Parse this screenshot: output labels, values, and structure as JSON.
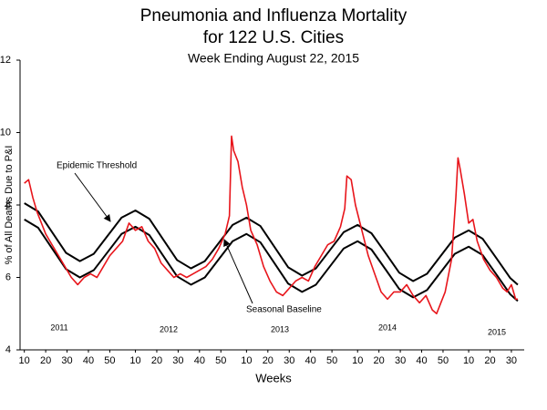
{
  "chart_data": {
    "type": "line",
    "title": [
      "Pneumonia and Influenza Mortality",
      "for 122 U.S. Cities"
    ],
    "subtitle": "Week Ending August 22, 2015",
    "xlabel": "Weeks",
    "ylabel": "% of All Deaths Due to P&I",
    "year_labels": [
      "2011",
      "2012",
      "2013",
      "2014",
      "2015"
    ],
    "xlim": [
      -2,
      234
    ],
    "ylim": [
      4,
      12
    ],
    "yticks": [
      4,
      6,
      8,
      10,
      12
    ],
    "xticks": [
      {
        "value": 0,
        "label": "10"
      },
      {
        "value": 10,
        "label": "20"
      },
      {
        "value": 20,
        "label": "30"
      },
      {
        "value": 30,
        "label": "40"
      },
      {
        "value": 40,
        "label": "50"
      },
      {
        "value": 52,
        "label": "10"
      },
      {
        "value": 62,
        "label": "20"
      },
      {
        "value": 72,
        "label": "30"
      },
      {
        "value": 82,
        "label": "40"
      },
      {
        "value": 92,
        "label": "50"
      },
      {
        "value": 104,
        "label": "10"
      },
      {
        "value": 114,
        "label": "20"
      },
      {
        "value": 124,
        "label": "30"
      },
      {
        "value": 134,
        "label": "40"
      },
      {
        "value": 144,
        "label": "50"
      },
      {
        "value": 156,
        "label": "10"
      },
      {
        "value": 166,
        "label": "20"
      },
      {
        "value": 176,
        "label": "30"
      },
      {
        "value": 186,
        "label": "40"
      },
      {
        "value": 196,
        "label": "50"
      },
      {
        "value": 208,
        "label": "10"
      },
      {
        "value": 218,
        "label": "20"
      },
      {
        "value": 228,
        "label": "30"
      }
    ],
    "grid": false,
    "series": [
      {
        "name": "Epidemic Threshold",
        "color": "#000000",
        "x": [
          0,
          6.5,
          13,
          19.5,
          26,
          32.5,
          39,
          45.5,
          52,
          58.5,
          65,
          71.5,
          78,
          84.5,
          91,
          97.5,
          104,
          110.5,
          117,
          123.5,
          130,
          136.5,
          143,
          149.5,
          156,
          162.5,
          169,
          175.5,
          182,
          188.5,
          195,
          201.5,
          208,
          214.5,
          221,
          227.5,
          231
        ],
        "values": [
          8.05,
          7.82,
          7.25,
          6.68,
          6.45,
          6.65,
          7.15,
          7.65,
          7.85,
          7.62,
          7.05,
          6.48,
          6.25,
          6.45,
          6.95,
          7.45,
          7.65,
          7.42,
          6.85,
          6.28,
          6.05,
          6.25,
          6.75,
          7.25,
          7.45,
          7.22,
          6.68,
          6.13,
          5.9,
          6.1,
          6.6,
          7.1,
          7.3,
          7.07,
          6.53,
          5.98,
          5.8
        ]
      },
      {
        "name": "Seasonal Baseline",
        "color": "#000000",
        "x": [
          0,
          6.5,
          13,
          19.5,
          26,
          32.5,
          39,
          45.5,
          52,
          58.5,
          65,
          71.5,
          78,
          84.5,
          91,
          97.5,
          104,
          110.5,
          117,
          123.5,
          130,
          136.5,
          143,
          149.5,
          156,
          162.5,
          169,
          175.5,
          182,
          188.5,
          195,
          201.5,
          208,
          214.5,
          221,
          227.5,
          231
        ],
        "values": [
          7.6,
          7.37,
          6.8,
          6.23,
          6.0,
          6.2,
          6.7,
          7.2,
          7.4,
          7.17,
          6.6,
          6.03,
          5.8,
          6.0,
          6.5,
          7.0,
          7.2,
          6.97,
          6.4,
          5.83,
          5.6,
          5.8,
          6.3,
          6.8,
          7.0,
          6.77,
          6.23,
          5.68,
          5.45,
          5.65,
          6.15,
          6.65,
          6.85,
          6.62,
          6.08,
          5.53,
          5.35
        ]
      },
      {
        "color": "#e8151b",
        "x": [
          0,
          2,
          4,
          6,
          8,
          10,
          13,
          16,
          19,
          22,
          25,
          28,
          31,
          34,
          37,
          40,
          43,
          46,
          49,
          52,
          55,
          58,
          61,
          64,
          67,
          70,
          73,
          76,
          79,
          82,
          85,
          88,
          91,
          94,
          96,
          97,
          98,
          100,
          102,
          104,
          106,
          109,
          112,
          115,
          118,
          121,
          124,
          127,
          130,
          133,
          136,
          139,
          142,
          145,
          148,
          150,
          151,
          153,
          155,
          158,
          161,
          164,
          167,
          170,
          173,
          176,
          179,
          182,
          185,
          188,
          191,
          193,
          195,
          197,
          200,
          202,
          203,
          204,
          206,
          208,
          210,
          212,
          215,
          218,
          221,
          224,
          226,
          228,
          230,
          231
        ],
        "values": [
          8.6,
          8.7,
          8.2,
          7.8,
          7.5,
          7.2,
          6.9,
          6.6,
          6.3,
          6.0,
          5.8,
          6.0,
          6.1,
          6.0,
          6.3,
          6.6,
          6.8,
          7.0,
          7.5,
          7.3,
          7.4,
          7.0,
          6.8,
          6.4,
          6.2,
          6.0,
          6.1,
          6.0,
          6.1,
          6.2,
          6.3,
          6.5,
          6.8,
          7.2,
          7.7,
          9.9,
          9.5,
          9.2,
          8.5,
          8.0,
          7.3,
          6.9,
          6.3,
          5.9,
          5.6,
          5.5,
          5.7,
          5.9,
          6.0,
          5.9,
          6.3,
          6.6,
          6.9,
          7.0,
          7.4,
          7.9,
          8.8,
          8.7,
          8.0,
          7.3,
          6.6,
          6.1,
          5.6,
          5.4,
          5.6,
          5.6,
          5.8,
          5.5,
          5.3,
          5.5,
          5.1,
          5.0,
          5.3,
          5.6,
          6.5,
          8.2,
          9.3,
          9.0,
          8.3,
          7.5,
          7.6,
          7.0,
          6.5,
          6.2,
          6.0,
          5.7,
          5.6,
          5.8,
          5.4,
          5.4
        ]
      }
    ]
  }
}
